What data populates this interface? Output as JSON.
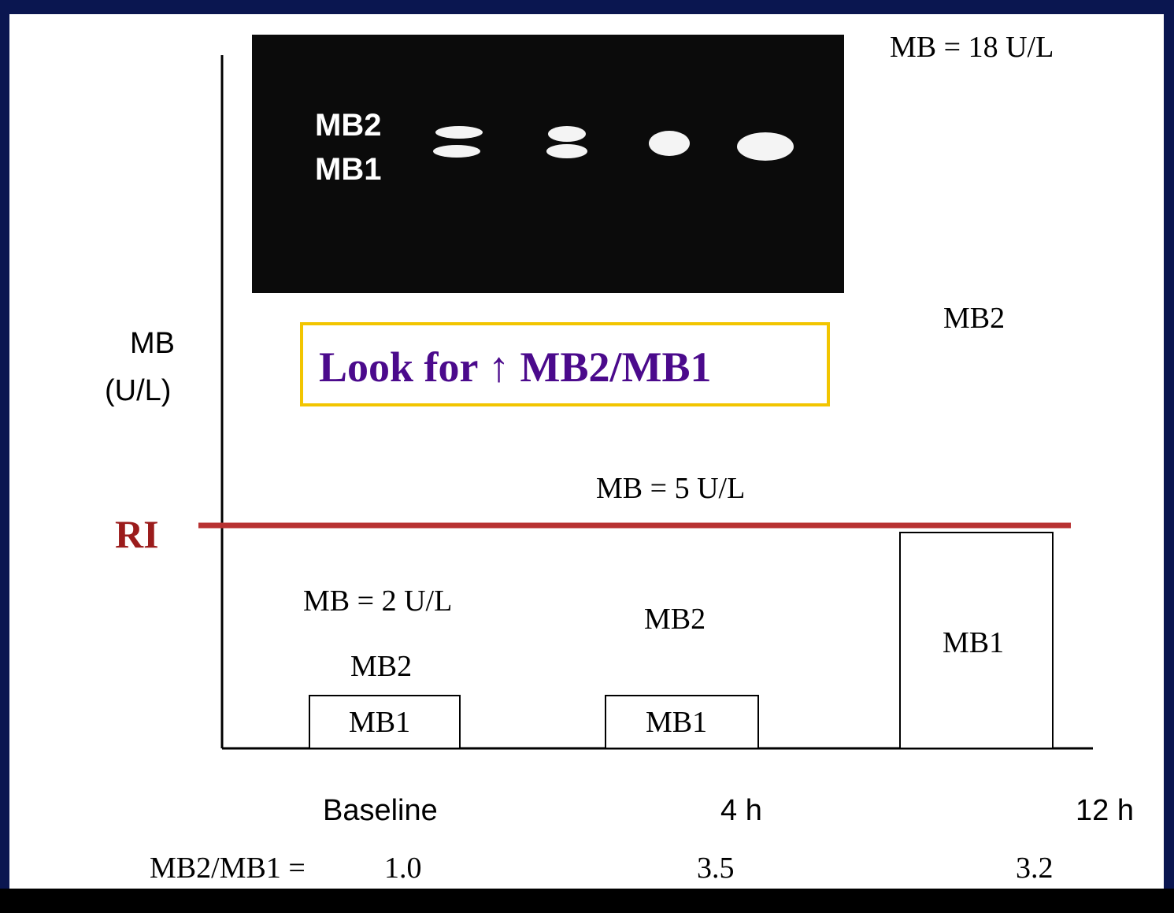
{
  "gel": {
    "labels": [
      "MB2",
      "MB1"
    ]
  },
  "y_axis": {
    "label_line1": "MB",
    "label_line2": "(U/L)"
  },
  "callout": "Look for ↑ MB2/MB1",
  "reference": {
    "label": "RI"
  },
  "timepoints": [
    {
      "label": "Baseline",
      "total": "MB = 2 U/L",
      "upper": "MB2",
      "lower": "MB1",
      "ratio": "1.0"
    },
    {
      "label": "4 h",
      "total": "MB = 5 U/L",
      "upper": "MB2",
      "lower": "MB1",
      "ratio": "3.5"
    },
    {
      "label": "12 h",
      "total": "MB = 18 U/L",
      "upper": "MB2",
      "lower": "MB1",
      "ratio": "3.2"
    }
  ],
  "ratio_label": "MB2/MB1 ="
}
